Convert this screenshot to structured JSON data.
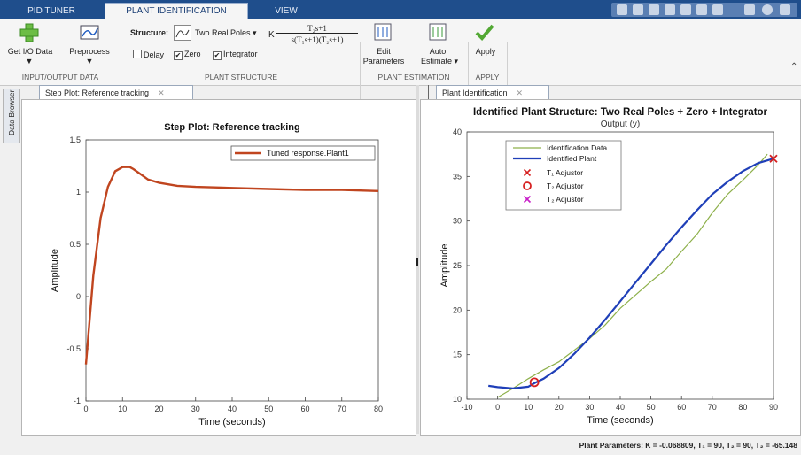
{
  "tabs": [
    "PID TUNER",
    "PLANT IDENTIFICATION",
    "VIEW"
  ],
  "toolstrip": {
    "get_io_data": "Get I/O Data",
    "preprocess": "Preprocess",
    "structure_label": "Structure:",
    "structure_value": "Two Real Poles",
    "tf_k": "K",
    "tf_num": "T₂s+1",
    "tf_den": "s(T₁s+1)(T₂s+1)",
    "delay": "Delay",
    "zero": "Zero",
    "integrator": "Integrator",
    "edit_parameters_1": "Edit",
    "edit_parameters_2": "Parameters",
    "auto_estimate_1": "Auto",
    "auto_estimate_2": "Estimate",
    "apply": "Apply",
    "sections": [
      "INPUT/OUTPUT DATA",
      "PLANT STRUCTURE",
      "PLANT ESTIMATION",
      "APPLY"
    ]
  },
  "data_browser": "Data Browser",
  "left_panel": {
    "tab": "Step Plot: Reference tracking",
    "chart_data": {
      "type": "line",
      "title": "Step Plot: Reference tracking",
      "xlabel": "Time (seconds)",
      "ylabel": "Amplitude",
      "xlim": [
        0,
        80
      ],
      "ylim": [
        -1,
        1.5
      ],
      "xticks": [
        "0",
        "10",
        "20",
        "30",
        "40",
        "50",
        "60",
        "70",
        "80"
      ],
      "yticks": [
        "1.5",
        "1",
        "0.5",
        "0",
        "-0.5",
        "-1"
      ],
      "legend": "top-right",
      "grid": false,
      "series": [
        {
          "name": "Tuned response.Plant1",
          "color": "#c0451f",
          "x": [
            0,
            2,
            4,
            6,
            8,
            10,
            12,
            13,
            15,
            17,
            20,
            25,
            30,
            40,
            50,
            60,
            70,
            80
          ],
          "y": [
            -0.65,
            0.2,
            0.75,
            1.05,
            1.2,
            1.24,
            1.24,
            1.22,
            1.17,
            1.12,
            1.09,
            1.06,
            1.05,
            1.04,
            1.03,
            1.02,
            1.02,
            1.01
          ]
        }
      ]
    }
  },
  "right_panel": {
    "tab": "Plant Identification",
    "chart_data": {
      "type": "line",
      "title": "Identified Plant Structure: Two Real Poles + Zero + Integrator",
      "subtitle": "Output (y)",
      "xlabel": "Time (seconds)",
      "ylabel": "Amplitude",
      "xlim": [
        -10,
        90
      ],
      "ylim": [
        10,
        40
      ],
      "xticks": [
        "-10",
        "0",
        "10",
        "20",
        "30",
        "40",
        "50",
        "60",
        "70",
        "80",
        "90"
      ],
      "yticks": [
        "40",
        "35",
        "30",
        "25",
        "20",
        "15",
        "10"
      ],
      "legend": "top-left",
      "grid": false,
      "series": [
        {
          "name": "Identification Data",
          "color": "#8db04a",
          "x": [
            0,
            5,
            10,
            15,
            20,
            25,
            30,
            35,
            40,
            45,
            50,
            55,
            60,
            65,
            70,
            75,
            80,
            85,
            88
          ],
          "y": [
            10.2,
            11.2,
            12.3,
            13.3,
            14.2,
            15.5,
            16.8,
            18.3,
            20.2,
            21.7,
            23.2,
            24.6,
            26.6,
            28.5,
            30.9,
            33.0,
            34.6,
            36.3,
            37.5
          ]
        },
        {
          "name": "Identified Plant",
          "color": "#1f3fb8",
          "x": [
            -3,
            0,
            5,
            10,
            12,
            15,
            20,
            25,
            30,
            35,
            40,
            45,
            50,
            55,
            60,
            65,
            70,
            75,
            80,
            85,
            90
          ],
          "y": [
            11.5,
            11.35,
            11.2,
            11.4,
            11.8,
            12.3,
            13.5,
            15.1,
            16.9,
            18.9,
            21.0,
            23.1,
            25.2,
            27.3,
            29.3,
            31.2,
            33.0,
            34.4,
            35.6,
            36.5,
            37.0
          ]
        }
      ],
      "markers": [
        {
          "name": "T₁ Adjustor",
          "symbol": "x",
          "color": "#d62020",
          "x": 90,
          "y": 37.0
        },
        {
          "name": "T₂ Adjustor",
          "symbol": "o",
          "color": "#d62020",
          "x": 12,
          "y": 11.9
        },
        {
          "name": "T₂ Adjustor",
          "symbol": "x",
          "color": "#c81ec8"
        }
      ]
    }
  },
  "status_text": "Plant Parameters: K = -0.068809, T₁ = 90, T₂ = 90, T₂ = -65.148"
}
